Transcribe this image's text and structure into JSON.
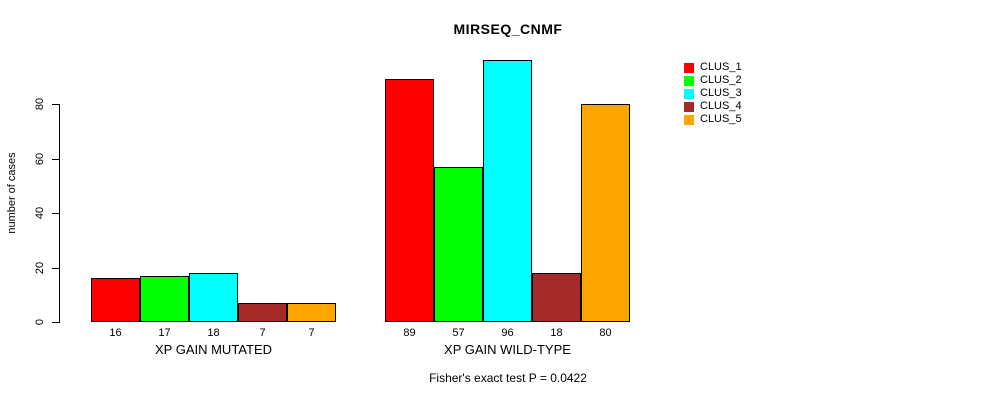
{
  "chart_data": {
    "type": "bar",
    "title": "MIRSEQ_CNMF",
    "ylabel": "number of cases",
    "xlabel": "",
    "footnote": "Fisher's exact test P = 0.0422",
    "ylim": [
      0,
      96
    ],
    "yticks": [
      0,
      20,
      40,
      60,
      80
    ],
    "grid": false,
    "legend_position": "right",
    "series": [
      {
        "name": "CLUS_1",
        "color": "#FF0000"
      },
      {
        "name": "CLUS_2",
        "color": "#00FF00"
      },
      {
        "name": "CLUS_3",
        "color": "#00FFFF"
      },
      {
        "name": "CLUS_4",
        "color": "#A52A2A"
      },
      {
        "name": "CLUS_5",
        "color": "#FFA500"
      }
    ],
    "groups": [
      {
        "label": "XP GAIN MUTATED",
        "values": [
          16,
          17,
          18,
          7,
          7
        ]
      },
      {
        "label": "XP GAIN WILD-TYPE",
        "values": [
          89,
          57,
          96,
          18,
          80
        ]
      }
    ]
  }
}
